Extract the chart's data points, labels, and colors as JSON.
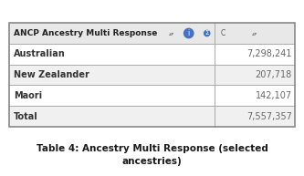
{
  "title": "Table 4: Ancestry Multi Response (selected\nancestries)",
  "header_col1": "ANCP Ancestry Multi Response",
  "rows": [
    [
      "Australian",
      "7,298,241"
    ],
    [
      "New Zealander",
      "207,718"
    ],
    [
      "Maori",
      "142,107"
    ],
    [
      "Total",
      "7,557,357"
    ]
  ],
  "header_bg": "#e8e8e8",
  "row_bg_odd": "#ffffff",
  "row_bg_even": "#f0f0f0",
  "border_color": "#aaaaaa",
  "header_text_color": "#222222",
  "row_text_color": "#333333",
  "value_text_color": "#666666",
  "title_color": "#1a1a1a",
  "table_border_color": "#888888",
  "icon_i_color": "#4472c4",
  "icon_sigma_color": "#4472c4",
  "figsize": [
    3.33,
    1.93
  ],
  "dpi": 100
}
